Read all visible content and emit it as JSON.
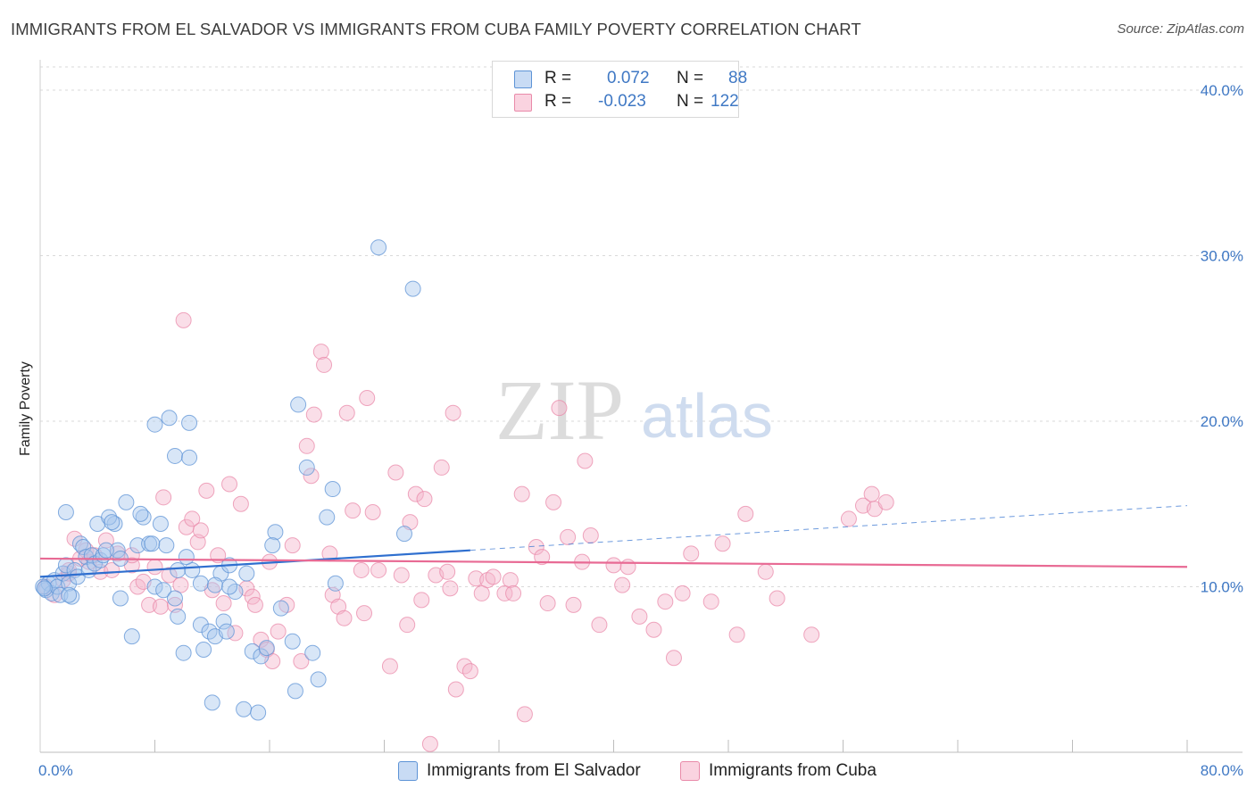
{
  "title": "IMMIGRANTS FROM EL SALVADOR VS IMMIGRANTS FROM CUBA FAMILY POVERTY CORRELATION CHART",
  "source": "Source: ZipAtlas.com",
  "watermark": {
    "zip": "ZIP",
    "atlas": "atlas"
  },
  "legend": {
    "r_label": "R =",
    "n_label": "N =",
    "rows": [
      {
        "r": "0.072",
        "n": "88",
        "color": "#a9c7ee"
      },
      {
        "r": "-0.023",
        "n": "122",
        "color": "#f5b6cb"
      }
    ]
  },
  "colors": {
    "blue_fill": "#a9c7ee",
    "blue_stroke": "#5d93d6",
    "blue_line": "#2f6fcf",
    "pink_fill": "#f5b6cb",
    "pink_stroke": "#e98aa9",
    "pink_line": "#e86a94",
    "axis_text": "#3f78c4",
    "grid": "#d9d9d9"
  },
  "chart_data": {
    "type": "scatter",
    "title": "IMMIGRANTS FROM EL SALVADOR VS IMMIGRANTS FROM CUBA FAMILY POVERTY CORRELATION CHART",
    "xlabel": "",
    "ylabel": "Family Poverty",
    "xlim": [
      0,
      80
    ],
    "ylim": [
      0,
      41.4
    ],
    "x_tick_labels": [
      "0.0%",
      "80.0%"
    ],
    "y_ticks": [
      10,
      20,
      30,
      40
    ],
    "y_tick_labels": [
      "10.0%",
      "20.0%",
      "30.0%",
      "40.0%"
    ],
    "grid": true,
    "legend_position": "top-center",
    "series": [
      {
        "name": "Immigrants from El Salvador",
        "color": "#a9c7ee",
        "trend": {
          "x": [
            0,
            30
          ],
          "y": [
            10.6,
            12.2
          ],
          "dashed_to_x": 80,
          "dashed_y": 14.9
        },
        "points": [
          [
            0.4,
            9.8
          ],
          [
            0.6,
            10.2
          ],
          [
            0.8,
            9.6
          ],
          [
            1.0,
            10.4
          ],
          [
            1.2,
            10.0
          ],
          [
            1.4,
            9.5
          ],
          [
            1.6,
            10.8
          ],
          [
            1.8,
            11.3
          ],
          [
            2.0,
            10.2
          ],
          [
            2.2,
            9.4
          ],
          [
            2.4,
            11.0
          ],
          [
            2.6,
            10.6
          ],
          [
            2.8,
            12.6
          ],
          [
            3.0,
            12.4
          ],
          [
            3.2,
            11.8
          ],
          [
            3.4,
            11.0
          ],
          [
            3.6,
            11.9
          ],
          [
            3.8,
            11.4
          ],
          [
            4.0,
            13.8
          ],
          [
            4.2,
            11.6
          ],
          [
            4.4,
            11.9
          ],
          [
            5.2,
            13.8
          ],
          [
            5.4,
            12.2
          ],
          [
            5.6,
            11.7
          ],
          [
            1.8,
            14.5
          ],
          [
            4.8,
            14.2
          ],
          [
            5.0,
            13.9
          ],
          [
            6.0,
            15.1
          ],
          [
            7.2,
            14.2
          ],
          [
            7.0,
            14.4
          ],
          [
            6.8,
            12.5
          ],
          [
            7.6,
            12.6
          ],
          [
            8.4,
            13.8
          ],
          [
            8.8,
            12.5
          ],
          [
            8.0,
            10.0
          ],
          [
            8.6,
            9.8
          ],
          [
            9.4,
            9.3
          ],
          [
            9.6,
            11.0
          ],
          [
            10.6,
            11.0
          ],
          [
            10.2,
            11.8
          ],
          [
            11.2,
            10.2
          ],
          [
            12.6,
            10.8
          ],
          [
            13.2,
            11.3
          ],
          [
            14.4,
            10.8
          ],
          [
            16.4,
            13.3
          ],
          [
            16.2,
            12.5
          ],
          [
            16.8,
            8.7
          ],
          [
            17.6,
            6.7
          ],
          [
            17.8,
            3.7
          ],
          [
            18.0,
            21.0
          ],
          [
            18.6,
            17.2
          ],
          [
            19.0,
            6.0
          ],
          [
            19.4,
            4.4
          ],
          [
            20.0,
            14.2
          ],
          [
            20.4,
            15.9
          ],
          [
            20.6,
            10.2
          ],
          [
            8.0,
            19.8
          ],
          [
            9.0,
            20.2
          ],
          [
            10.4,
            19.9
          ],
          [
            9.4,
            17.9
          ],
          [
            10.4,
            17.8
          ],
          [
            11.2,
            7.7
          ],
          [
            11.4,
            6.2
          ],
          [
            11.8,
            7.3
          ],
          [
            12.2,
            7.0
          ],
          [
            12.8,
            7.9
          ],
          [
            13.0,
            7.3
          ],
          [
            13.6,
            9.7
          ],
          [
            12.2,
            10.1
          ],
          [
            13.2,
            10.0
          ],
          [
            14.8,
            6.1
          ],
          [
            15.4,
            5.8
          ],
          [
            15.8,
            6.3
          ],
          [
            9.6,
            8.2
          ],
          [
            10.0,
            6.0
          ],
          [
            12.0,
            3.0
          ],
          [
            14.2,
            2.6
          ],
          [
            15.2,
            2.4
          ],
          [
            5.6,
            9.3
          ],
          [
            6.4,
            7.0
          ],
          [
            23.6,
            30.5
          ],
          [
            26.0,
            28.0
          ],
          [
            25.4,
            13.2
          ],
          [
            0.2,
            10.0
          ],
          [
            0.3,
            9.9
          ],
          [
            2.0,
            9.5
          ],
          [
            4.6,
            12.2
          ],
          [
            7.8,
            12.6
          ]
        ]
      },
      {
        "name": "Immigrants from Cuba",
        "color": "#f5b6cb",
        "trend": {
          "x": [
            0,
            80
          ],
          "y": [
            11.7,
            11.2
          ]
        },
        "points": [
          [
            0.4,
            10.0
          ],
          [
            1.0,
            9.5
          ],
          [
            1.6,
            10.4
          ],
          [
            2.0,
            10.8
          ],
          [
            2.4,
            12.9
          ],
          [
            2.8,
            11.7
          ],
          [
            3.2,
            12.2
          ],
          [
            3.4,
            11.5
          ],
          [
            3.8,
            11.9
          ],
          [
            4.2,
            10.9
          ],
          [
            4.6,
            12.8
          ],
          [
            5.0,
            11.0
          ],
          [
            5.4,
            12.0
          ],
          [
            6.4,
            11.3
          ],
          [
            6.8,
            10.0
          ],
          [
            6.4,
            11.9
          ],
          [
            7.2,
            10.3
          ],
          [
            7.6,
            8.9
          ],
          [
            8.0,
            11.2
          ],
          [
            8.4,
            8.8
          ],
          [
            8.6,
            15.4
          ],
          [
            9.0,
            10.7
          ],
          [
            9.4,
            8.9
          ],
          [
            9.8,
            10.1
          ],
          [
            10.2,
            13.6
          ],
          [
            10.6,
            14.1
          ],
          [
            11.0,
            12.7
          ],
          [
            11.2,
            13.4
          ],
          [
            11.6,
            15.8
          ],
          [
            12.0,
            9.8
          ],
          [
            12.4,
            11.9
          ],
          [
            12.8,
            9.0
          ],
          [
            13.2,
            16.2
          ],
          [
            13.6,
            7.2
          ],
          [
            14.0,
            15.0
          ],
          [
            14.4,
            9.9
          ],
          [
            14.8,
            9.4
          ],
          [
            15.0,
            8.9
          ],
          [
            15.4,
            6.8
          ],
          [
            15.8,
            6.2
          ],
          [
            16.2,
            5.5
          ],
          [
            16.6,
            7.3
          ],
          [
            17.2,
            8.9
          ],
          [
            17.6,
            12.5
          ],
          [
            18.2,
            5.5
          ],
          [
            18.6,
            18.5
          ],
          [
            18.9,
            16.7
          ],
          [
            19.1,
            20.4
          ],
          [
            19.6,
            24.2
          ],
          [
            19.8,
            23.4
          ],
          [
            20.2,
            12.0
          ],
          [
            20.4,
            9.5
          ],
          [
            20.8,
            8.8
          ],
          [
            21.2,
            8.1
          ],
          [
            21.4,
            20.5
          ],
          [
            21.8,
            14.6
          ],
          [
            22.4,
            11.0
          ],
          [
            22.6,
            8.4
          ],
          [
            22.8,
            21.4
          ],
          [
            23.2,
            14.5
          ],
          [
            23.6,
            11.0
          ],
          [
            24.4,
            5.2
          ],
          [
            24.8,
            16.9
          ],
          [
            25.2,
            10.7
          ],
          [
            25.6,
            7.7
          ],
          [
            25.8,
            13.9
          ],
          [
            26.2,
            15.6
          ],
          [
            26.6,
            9.2
          ],
          [
            26.8,
            15.3
          ],
          [
            27.2,
            0.5
          ],
          [
            27.6,
            10.7
          ],
          [
            28.0,
            17.2
          ],
          [
            28.4,
            10.9
          ],
          [
            28.6,
            9.9
          ],
          [
            28.8,
            20.5
          ],
          [
            29.0,
            3.8
          ],
          [
            29.6,
            5.2
          ],
          [
            30.0,
            4.9
          ],
          [
            30.4,
            10.5
          ],
          [
            30.8,
            9.6
          ],
          [
            31.2,
            10.4
          ],
          [
            31.6,
            10.6
          ],
          [
            32.4,
            9.6
          ],
          [
            32.8,
            10.4
          ],
          [
            33.0,
            9.6
          ],
          [
            33.6,
            15.6
          ],
          [
            33.8,
            2.3
          ],
          [
            34.6,
            12.4
          ],
          [
            35.0,
            11.8
          ],
          [
            35.4,
            9.0
          ],
          [
            35.8,
            15.1
          ],
          [
            36.2,
            20.8
          ],
          [
            36.8,
            13.0
          ],
          [
            37.2,
            8.9
          ],
          [
            37.8,
            11.5
          ],
          [
            38.0,
            17.6
          ],
          [
            38.4,
            13.1
          ],
          [
            39.0,
            7.7
          ],
          [
            40.0,
            11.3
          ],
          [
            40.6,
            10.1
          ],
          [
            41.0,
            11.2
          ],
          [
            41.8,
            8.2
          ],
          [
            42.8,
            7.4
          ],
          [
            43.6,
            9.1
          ],
          [
            44.2,
            5.7
          ],
          [
            44.8,
            9.6
          ],
          [
            45.4,
            12.0
          ],
          [
            46.8,
            9.1
          ],
          [
            47.6,
            12.6
          ],
          [
            48.6,
            7.1
          ],
          [
            49.2,
            14.4
          ],
          [
            50.6,
            10.9
          ],
          [
            51.4,
            9.3
          ],
          [
            53.8,
            7.1
          ],
          [
            56.4,
            14.1
          ],
          [
            57.4,
            14.9
          ],
          [
            58.2,
            14.7
          ],
          [
            58.0,
            15.6
          ],
          [
            59.0,
            15.1
          ],
          [
            10.0,
            26.1
          ],
          [
            2.0,
            11.0
          ],
          [
            16.0,
            11.5
          ]
        ]
      }
    ]
  },
  "bottom_legend": {
    "items": [
      {
        "label": "Immigrants from El Salvador",
        "color": "#a9c7ee"
      },
      {
        "label": "Immigrants from Cuba",
        "color": "#f5b6cb"
      }
    ]
  }
}
